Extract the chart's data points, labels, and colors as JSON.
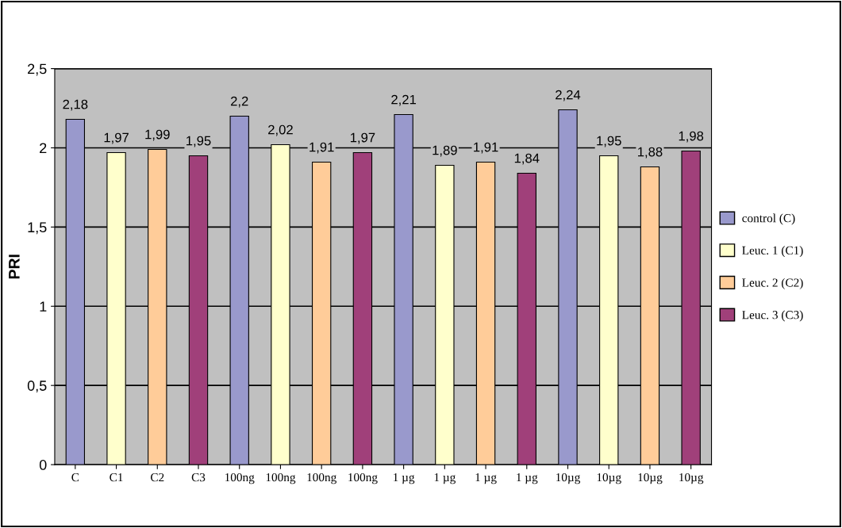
{
  "chart_data": {
    "type": "bar",
    "ylabel": "PRI",
    "categories": [
      "C",
      "C1",
      "C2",
      "C3",
      "100ng",
      "100ng",
      "100ng",
      "100ng",
      "1 µg",
      "1 µg",
      "1 µg",
      "1 µg",
      "10µg",
      "10µg",
      "10µg",
      "10µg"
    ],
    "series": [
      {
        "name": "control (C)",
        "color": "#9999cc",
        "values": [
          2.18,
          null,
          null,
          null,
          2.2,
          null,
          null,
          null,
          2.21,
          null,
          null,
          null,
          2.24,
          null,
          null,
          null
        ],
        "value_labels": [
          "2,18",
          null,
          null,
          null,
          "2,2",
          null,
          null,
          null,
          "2,21",
          null,
          null,
          null,
          "2,24",
          null,
          null,
          null
        ]
      },
      {
        "name": "Leuc. 1 (C1)",
        "color": "#ffffcc",
        "values": [
          null,
          1.97,
          null,
          null,
          null,
          2.02,
          null,
          null,
          null,
          1.89,
          null,
          null,
          null,
          1.95,
          null,
          null
        ],
        "value_labels": [
          null,
          "1,97",
          null,
          null,
          null,
          "2,02",
          null,
          null,
          null,
          "1,89",
          null,
          null,
          null,
          "1,95",
          null,
          null
        ]
      },
      {
        "name": "Leuc. 2 (C2)",
        "color": "#ffcc99",
        "values": [
          null,
          null,
          1.99,
          null,
          null,
          null,
          1.91,
          null,
          null,
          null,
          1.91,
          null,
          null,
          null,
          1.88,
          null
        ],
        "value_labels": [
          null,
          null,
          "1,99",
          null,
          null,
          null,
          "1,91",
          null,
          null,
          null,
          "1,91",
          null,
          null,
          null,
          "1,88",
          null
        ]
      },
      {
        "name": "Leuc. 3 (C3)",
        "color": "#a0407a",
        "values": [
          null,
          null,
          null,
          1.95,
          null,
          null,
          null,
          1.97,
          null,
          null,
          null,
          1.84,
          null,
          null,
          null,
          1.98
        ],
        "value_labels": [
          null,
          null,
          null,
          "1,95",
          null,
          null,
          null,
          "1,97",
          null,
          null,
          null,
          "1,84",
          null,
          null,
          null,
          "1,98"
        ]
      }
    ],
    "ylim": [
      0,
      2.5
    ],
    "yticks": [
      0,
      {
        "value": 0.5,
        "label": "0,5"
      },
      1,
      {
        "value": 1.5,
        "label": "1,5"
      },
      2,
      {
        "value": 2.5,
        "label": "2,5"
      }
    ],
    "grid": "y",
    "legend": "right"
  }
}
